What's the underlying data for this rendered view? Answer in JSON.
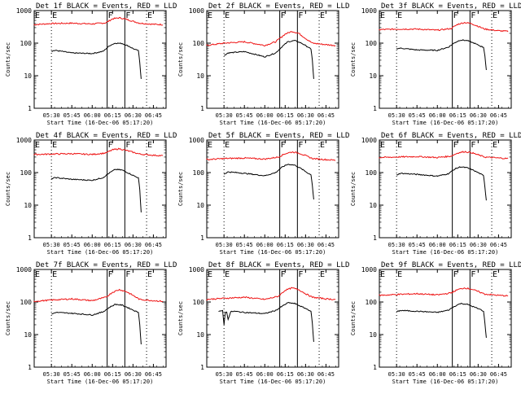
{
  "figure": {
    "colors": {
      "events": "#000000",
      "lld": "#ee1111",
      "axes": "#000000",
      "background": "#ffffff"
    }
  },
  "chart_data": [
    {
      "type": "line",
      "title": "Det 1f BLACK = Events, RED = LLD",
      "ylabel": "Counts/sec",
      "xlabel": "Start Time (16-Dec-06 05:17:20)",
      "x_ticks": [
        "05:30",
        "05:45",
        "06:00",
        "06:15",
        "06:30",
        "06:45"
      ],
      "y_ticks": [
        "1",
        "10",
        "100",
        "1000"
      ],
      "ylim": [
        1,
        1000
      ],
      "y_scale": "log",
      "markers": {
        "labels": [
          "E",
          "F",
          "F",
          "E"
        ]
      },
      "series": [
        {
          "role": "lld",
          "x": [
            "05:17",
            "05:30",
            "05:45",
            "06:00",
            "06:10",
            "06:15",
            "06:20",
            "06:25",
            "06:30",
            "06:35",
            "06:45",
            "06:52"
          ],
          "values": [
            370,
            400,
            410,
            390,
            420,
            560,
            600,
            540,
            470,
            410,
            380,
            370
          ]
        },
        {
          "role": "events",
          "x": [
            "05:30",
            "05:33",
            "05:45",
            "06:00",
            "06:08",
            "06:13",
            "06:17",
            "06:22",
            "06:27",
            "06:32",
            "06:34",
            "06:35",
            "06:36"
          ],
          "values": [
            57,
            60,
            50,
            48,
            56,
            85,
            100,
            98,
            80,
            62,
            60,
            25,
            8
          ]
        }
      ]
    },
    {
      "type": "line",
      "title": "Det 2f BLACK = Events, RED = LLD",
      "ylabel": "Counts/sec",
      "xlabel": "Start Time (16-Dec-06 05:17:20)",
      "x_ticks": [
        "05:30",
        "05:45",
        "06:00",
        "06:15",
        "06:30",
        "06:45"
      ],
      "y_ticks": [
        "1",
        "10",
        "100",
        "1000"
      ],
      "ylim": [
        1,
        1000
      ],
      "y_scale": "log",
      "markers": {
        "labels": [
          "E",
          "F",
          "F",
          "E"
        ]
      },
      "series": [
        {
          "role": "lld",
          "x": [
            "05:17",
            "05:30",
            "05:45",
            "06:00",
            "06:08",
            "06:15",
            "06:20",
            "06:25",
            "06:30",
            "06:35",
            "06:45",
            "06:52"
          ],
          "values": [
            85,
            100,
            110,
            85,
            110,
            190,
            230,
            200,
            140,
            100,
            90,
            85
          ]
        },
        {
          "role": "events",
          "x": [
            "05:30",
            "05:33",
            "05:45",
            "06:00",
            "06:08",
            "06:13",
            "06:17",
            "06:22",
            "06:27",
            "06:32",
            "06:34",
            "06:35",
            "06:36"
          ],
          "values": [
            42,
            50,
            55,
            38,
            50,
            80,
            110,
            120,
            100,
            75,
            65,
            30,
            8
          ]
        }
      ]
    },
    {
      "type": "line",
      "title": "Det 3f BLACK = Events, RED = LLD",
      "ylabel": "Counts/sec",
      "xlabel": "Start Time (16-Dec-06 05:17:20)",
      "x_ticks": [
        "05:30",
        "05:45",
        "06:00",
        "06:15",
        "06:30",
        "06:45"
      ],
      "y_ticks": [
        "1",
        "10",
        "100",
        "1000"
      ],
      "ylim": [
        1,
        1000
      ],
      "y_scale": "log",
      "markers": {
        "labels": [
          "E",
          "F",
          "F",
          "E"
        ]
      },
      "series": [
        {
          "role": "lld",
          "x": [
            "05:17",
            "05:30",
            "05:45",
            "06:00",
            "06:10",
            "06:15",
            "06:20",
            "06:25",
            "06:30",
            "06:35",
            "06:45",
            "06:52"
          ],
          "values": [
            260,
            270,
            270,
            250,
            280,
            380,
            430,
            400,
            330,
            270,
            240,
            230
          ]
        },
        {
          "role": "events",
          "x": [
            "05:30",
            "05:33",
            "05:45",
            "06:00",
            "06:08",
            "06:13",
            "06:17",
            "06:22",
            "06:27",
            "06:32",
            "06:34",
            "06:35",
            "06:36"
          ],
          "values": [
            68,
            70,
            62,
            60,
            75,
            105,
            125,
            120,
            100,
            80,
            75,
            40,
            15
          ]
        }
      ]
    },
    {
      "type": "line",
      "title": "Det 4f BLACK = Events, RED = LLD",
      "ylabel": "Counts/sec",
      "xlabel": "Start Time (16-Dec-06 05:17:20)",
      "x_ticks": [
        "05:30",
        "05:45",
        "06:00",
        "06:15",
        "06:30",
        "06:45"
      ],
      "y_ticks": [
        "1",
        "10",
        "100",
        "1000"
      ],
      "ylim": [
        1,
        1000
      ],
      "y_scale": "log",
      "markers": {
        "labels": [
          "E",
          "F",
          "F",
          "E"
        ]
      },
      "series": [
        {
          "role": "lld",
          "x": [
            "05:17",
            "05:30",
            "05:45",
            "06:00",
            "06:10",
            "06:15",
            "06:20",
            "06:25",
            "06:30",
            "06:35",
            "06:45",
            "06:52"
          ],
          "values": [
            360,
            370,
            380,
            360,
            400,
            500,
            540,
            480,
            420,
            370,
            340,
            330
          ]
        },
        {
          "role": "events",
          "x": [
            "05:30",
            "05:33",
            "05:45",
            "06:00",
            "06:08",
            "06:13",
            "06:17",
            "06:22",
            "06:27",
            "06:32",
            "06:34",
            "06:35",
            "06:36"
          ],
          "values": [
            65,
            70,
            62,
            58,
            70,
            100,
            125,
            120,
            95,
            75,
            70,
            30,
            6
          ]
        }
      ]
    },
    {
      "type": "line",
      "title": "Det 5f BLACK = Events, RED = LLD",
      "ylabel": "Counts/sec",
      "xlabel": "Start Time (16-Dec-06 05:17:20)",
      "x_ticks": [
        "05:30",
        "05:45",
        "06:00",
        "06:15",
        "06:30",
        "06:45"
      ],
      "y_ticks": [
        "1",
        "10",
        "100",
        "1000"
      ],
      "ylim": [
        1,
        1000
      ],
      "y_scale": "log",
      "markers": {
        "labels": [
          "E",
          "F",
          "F",
          "E"
        ]
      },
      "series": [
        {
          "role": "lld",
          "x": [
            "05:17",
            "05:30",
            "05:45",
            "06:00",
            "06:10",
            "06:15",
            "06:20",
            "06:25",
            "06:30",
            "06:35",
            "06:45",
            "06:52"
          ],
          "values": [
            250,
            270,
            280,
            260,
            300,
            380,
            430,
            400,
            330,
            270,
            250,
            240
          ]
        },
        {
          "role": "events",
          "x": [
            "05:30",
            "05:33",
            "05:45",
            "06:00",
            "06:08",
            "06:13",
            "06:17",
            "06:22",
            "06:27",
            "06:32",
            "06:34",
            "06:35",
            "06:36"
          ],
          "values": [
            90,
            105,
            95,
            80,
            100,
            150,
            180,
            170,
            130,
            95,
            85,
            40,
            15
          ]
        }
      ]
    },
    {
      "type": "line",
      "title": "Det 6f BLACK = Events, RED = LLD",
      "ylabel": "Counts/sec",
      "xlabel": "Start Time (16-Dec-06 05:17:20)",
      "x_ticks": [
        "05:30",
        "05:45",
        "06:00",
        "06:15",
        "06:30",
        "06:45"
      ],
      "y_ticks": [
        "1",
        "10",
        "100",
        "1000"
      ],
      "ylim": [
        1,
        1000
      ],
      "y_scale": "log",
      "markers": {
        "labels": [
          "E",
          "F",
          "F",
          "E"
        ]
      },
      "series": [
        {
          "role": "lld",
          "x": [
            "05:17",
            "05:30",
            "05:45",
            "06:00",
            "06:10",
            "06:15",
            "06:20",
            "06:25",
            "06:30",
            "06:35",
            "06:45",
            "06:52"
          ],
          "values": [
            290,
            300,
            310,
            290,
            320,
            400,
            440,
            410,
            350,
            300,
            280,
            270
          ]
        },
        {
          "role": "events",
          "x": [
            "05:30",
            "05:33",
            "05:45",
            "06:00",
            "06:08",
            "06:13",
            "06:17",
            "06:22",
            "06:27",
            "06:32",
            "06:34",
            "06:35",
            "06:36"
          ],
          "values": [
            85,
            95,
            88,
            78,
            92,
            130,
            150,
            140,
            115,
            90,
            80,
            35,
            14
          ]
        }
      ]
    },
    {
      "type": "line",
      "title": "Det 7f BLACK = Events, RED = LLD",
      "ylabel": "Counts/sec",
      "xlabel": "Start Time (16-Dec-06 05:17:20)",
      "x_ticks": [
        "05:30",
        "05:45",
        "06:00",
        "06:15",
        "06:30",
        "06:45"
      ],
      "y_ticks": [
        "1",
        "10",
        "100",
        "1000"
      ],
      "ylim": [
        1,
        1000
      ],
      "y_scale": "log",
      "markers": {
        "labels": [
          "E",
          "F",
          "F",
          "E"
        ]
      },
      "series": [
        {
          "role": "lld",
          "x": [
            "05:17",
            "05:30",
            "05:45",
            "06:00",
            "06:10",
            "06:15",
            "06:20",
            "06:25",
            "06:30",
            "06:35",
            "06:45",
            "06:52"
          ],
          "values": [
            105,
            115,
            125,
            110,
            140,
            200,
            240,
            210,
            160,
            120,
            110,
            105
          ]
        },
        {
          "role": "events",
          "x": [
            "05:30",
            "05:33",
            "05:45",
            "06:00",
            "06:08",
            "06:13",
            "06:17",
            "06:22",
            "06:27",
            "06:32",
            "06:34",
            "06:35",
            "06:36"
          ],
          "values": [
            42,
            48,
            45,
            40,
            50,
            70,
            85,
            80,
            65,
            52,
            48,
            20,
            5
          ]
        }
      ]
    },
    {
      "type": "line",
      "title": "Det 8f BLACK = Events, RED = LLD",
      "ylabel": "Counts/sec",
      "xlabel": "Start Time (16-Dec-06 05:17:20)",
      "x_ticks": [
        "05:30",
        "05:45",
        "06:00",
        "06:15",
        "06:30",
        "06:45"
      ],
      "y_ticks": [
        "1",
        "10",
        "100",
        "1000"
      ],
      "ylim": [
        1,
        1000
      ],
      "y_scale": "log",
      "markers": {
        "labels": [
          "E",
          "F",
          "F",
          "E"
        ]
      },
      "series": [
        {
          "role": "lld",
          "x": [
            "05:17",
            "05:30",
            "05:45",
            "06:00",
            "06:10",
            "06:15",
            "06:20",
            "06:25",
            "06:30",
            "06:35",
            "06:45",
            "06:52"
          ],
          "values": [
            120,
            130,
            140,
            120,
            150,
            230,
            270,
            240,
            180,
            140,
            125,
            120
          ]
        },
        {
          "role": "events",
          "x": [
            "05:26",
            "05:29",
            "05:30",
            "05:31",
            "05:32",
            "05:33",
            "05:35",
            "05:37",
            "05:45",
            "06:00",
            "06:08",
            "06:13",
            "06:17",
            "06:22",
            "06:27",
            "06:32",
            "06:34",
            "06:35",
            "06:36"
          ],
          "values": [
            50,
            55,
            20,
            50,
            48,
            30,
            50,
            52,
            48,
            44,
            55,
            75,
            95,
            90,
            72,
            58,
            52,
            22,
            6
          ]
        }
      ]
    },
    {
      "type": "line",
      "title": "Det 9f BLACK = Events, RED = LLD",
      "ylabel": "Counts/sec",
      "xlabel": "Start Time (16-Dec-06 05:17:20)",
      "x_ticks": [
        "05:30",
        "05:45",
        "06:00",
        "06:15",
        "06:30",
        "06:45"
      ],
      "y_ticks": [
        "1",
        "10",
        "100",
        "1000"
      ],
      "ylim": [
        1,
        1000
      ],
      "y_scale": "log",
      "markers": {
        "labels": [
          "E",
          "F",
          "F",
          "E"
        ]
      },
      "series": [
        {
          "role": "lld",
          "x": [
            "05:17",
            "05:30",
            "05:45",
            "06:00",
            "06:10",
            "06:15",
            "06:20",
            "06:25",
            "06:30",
            "06:35",
            "06:45",
            "06:52"
          ],
          "values": [
            160,
            170,
            180,
            165,
            190,
            240,
            270,
            250,
            210,
            175,
            160,
            155
          ]
        },
        {
          "role": "events",
          "x": [
            "05:30",
            "05:33",
            "05:45",
            "06:00",
            "06:08",
            "06:13",
            "06:17",
            "06:22",
            "06:27",
            "06:32",
            "06:34",
            "06:35",
            "06:36"
          ],
          "values": [
            50,
            55,
            52,
            48,
            56,
            75,
            90,
            85,
            70,
            58,
            52,
            22,
            8
          ]
        }
      ]
    }
  ]
}
